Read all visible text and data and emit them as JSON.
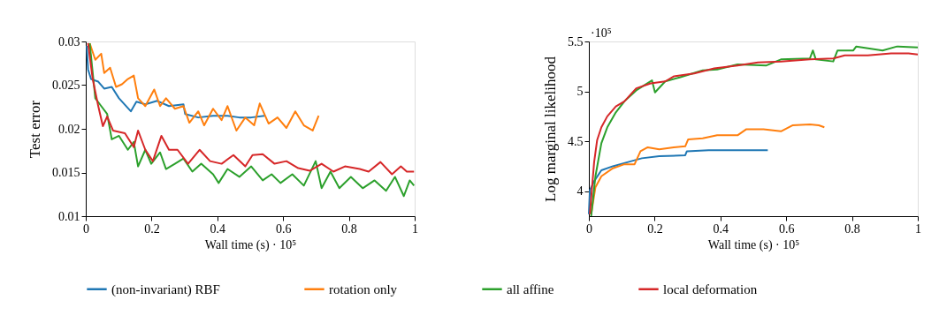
{
  "chart_data": [
    {
      "type": "line",
      "xlabel": "Wall time (s)  · 10⁵",
      "ylabel": "Test error",
      "xlim": [
        0,
        1
      ],
      "ylim": [
        0.01,
        0.03
      ],
      "xticks": [
        0,
        0.2,
        0.4,
        0.6,
        0.8,
        1
      ],
      "yticks": [
        0.01,
        0.015,
        0.02,
        0.025,
        0.03
      ],
      "grid": false,
      "legend": "bottom",
      "marker": "none",
      "line_style": "solid",
      "series": [
        {
          "name": "(non-invariant) RBF",
          "color": "#1f77b4",
          "x": [
            0.003,
            0.007,
            0.016,
            0.038,
            0.056,
            0.079,
            0.101,
            0.137,
            0.154,
            0.181,
            0.217,
            0.253,
            0.297,
            0.302,
            0.342,
            0.387,
            0.431,
            0.467,
            0.503,
            0.543
          ],
          "values": [
            0.0295,
            0.0268,
            0.0257,
            0.0254,
            0.0246,
            0.0248,
            0.0235,
            0.022,
            0.0231,
            0.0228,
            0.0232,
            0.0226,
            0.0228,
            0.0217,
            0.0213,
            0.0215,
            0.0215,
            0.0213,
            0.0213,
            0.0215
          ]
        },
        {
          "name": "rotation only",
          "color": "#ff7f0e",
          "x": [
            0.012,
            0.029,
            0.047,
            0.056,
            0.074,
            0.092,
            0.11,
            0.128,
            0.146,
            0.159,
            0.181,
            0.208,
            0.226,
            0.244,
            0.271,
            0.297,
            0.315,
            0.342,
            0.36,
            0.387,
            0.413,
            0.431,
            0.458,
            0.485,
            0.512,
            0.529,
            0.556,
            0.583,
            0.61,
            0.637,
            0.663,
            0.69,
            0.708
          ],
          "values": [
            0.0298,
            0.0279,
            0.0286,
            0.0264,
            0.027,
            0.0248,
            0.0251,
            0.0257,
            0.0261,
            0.0235,
            0.0226,
            0.0245,
            0.0226,
            0.0235,
            0.0223,
            0.0226,
            0.0207,
            0.022,
            0.0204,
            0.0223,
            0.021,
            0.0226,
            0.0198,
            0.0213,
            0.0204,
            0.0229,
            0.0206,
            0.0213,
            0.0201,
            0.022,
            0.0204,
            0.0198,
            0.0215
          ]
        },
        {
          "name": "all affine",
          "color": "#2ca02c",
          "x": [
            0.012,
            0.029,
            0.047,
            0.065,
            0.079,
            0.101,
            0.128,
            0.146,
            0.159,
            0.181,
            0.199,
            0.226,
            0.244,
            0.271,
            0.297,
            0.324,
            0.351,
            0.387,
            0.404,
            0.431,
            0.467,
            0.503,
            0.538,
            0.565,
            0.592,
            0.628,
            0.663,
            0.699,
            0.717,
            0.744,
            0.771,
            0.806,
            0.842,
            0.878,
            0.913,
            0.94,
            0.967,
            0.985,
            0.998
          ],
          "values": [
            0.0298,
            0.0235,
            0.0226,
            0.0217,
            0.0188,
            0.0192,
            0.0176,
            0.0185,
            0.0157,
            0.0176,
            0.016,
            0.0173,
            0.0154,
            0.016,
            0.0166,
            0.0151,
            0.016,
            0.0148,
            0.0138,
            0.0154,
            0.0145,
            0.0157,
            0.0141,
            0.0148,
            0.0138,
            0.0148,
            0.0135,
            0.0163,
            0.0132,
            0.0151,
            0.0132,
            0.0145,
            0.0132,
            0.0141,
            0.0129,
            0.0145,
            0.0123,
            0.0141,
            0.0135
          ]
        },
        {
          "name": "local deformation",
          "color": "#d62728",
          "x": [
            0.007,
            0.021,
            0.038,
            0.052,
            0.065,
            0.083,
            0.119,
            0.146,
            0.159,
            0.181,
            0.204,
            0.23,
            0.253,
            0.279,
            0.311,
            0.346,
            0.378,
            0.413,
            0.449,
            0.485,
            0.507,
            0.538,
            0.574,
            0.61,
            0.646,
            0.681,
            0.717,
            0.753,
            0.788,
            0.833,
            0.86,
            0.896,
            0.931,
            0.958,
            0.976,
            0.998
          ],
          "values": [
            0.0298,
            0.0257,
            0.0226,
            0.0203,
            0.0214,
            0.0198,
            0.0195,
            0.0179,
            0.0198,
            0.0176,
            0.0163,
            0.0192,
            0.0176,
            0.0176,
            0.016,
            0.0176,
            0.0163,
            0.016,
            0.017,
            0.0157,
            0.017,
            0.0171,
            0.016,
            0.0163,
            0.0155,
            0.0152,
            0.016,
            0.0151,
            0.0157,
            0.0154,
            0.0151,
            0.0162,
            0.0148,
            0.0157,
            0.0151,
            0.0151
          ]
        }
      ]
    },
    {
      "type": "line",
      "xlabel": "Wall time (s)  · 10⁵",
      "ylabel": "Log marginal likelihood",
      "annotations": [
        "·10⁵"
      ],
      "xlim": [
        0,
        1
      ],
      "ylim": [
        3.75,
        5.5
      ],
      "xticks": [
        0,
        0.2,
        0.4,
        0.6,
        0.8,
        1
      ],
      "yticks": [
        4,
        4.5,
        5,
        5.5
      ],
      "grid": false,
      "marker": "none",
      "line_style": "solid",
      "series": [
        {
          "name": "(non-invariant) RBF",
          "color": "#1f77b4",
          "x": [
            0,
            0.003,
            0.016,
            0.038,
            0.073,
            0.117,
            0.161,
            0.214,
            0.293,
            0.298,
            0.364,
            0.452,
            0.544
          ],
          "values": [
            3.77,
            4.01,
            4.1,
            4.21,
            4.25,
            4.29,
            4.33,
            4.35,
            4.36,
            4.4,
            4.41,
            4.41,
            4.41
          ]
        },
        {
          "name": "rotation only",
          "color": "#ff7f0e",
          "x": [
            0.007,
            0.02,
            0.038,
            0.073,
            0.108,
            0.139,
            0.157,
            0.179,
            0.214,
            0.258,
            0.293,
            0.302,
            0.346,
            0.39,
            0.452,
            0.478,
            0.531,
            0.584,
            0.619,
            0.672,
            0.699,
            0.716
          ],
          "values": [
            3.77,
            4.04,
            4.15,
            4.23,
            4.27,
            4.27,
            4.4,
            4.44,
            4.42,
            4.44,
            4.45,
            4.52,
            4.53,
            4.56,
            4.56,
            4.62,
            4.62,
            4.6,
            4.66,
            4.67,
            4.66,
            4.64
          ]
        },
        {
          "name": "all affine",
          "color": "#2ca02c",
          "x": [
            0.007,
            0.02,
            0.038,
            0.056,
            0.082,
            0.108,
            0.144,
            0.192,
            0.201,
            0.232,
            0.276,
            0.346,
            0.39,
            0.452,
            0.54,
            0.584,
            0.672,
            0.681,
            0.69,
            0.743,
            0.756,
            0.804,
            0.813,
            0.893,
            0.937,
            1.0
          ],
          "values": [
            3.75,
            4.15,
            4.48,
            4.64,
            4.79,
            4.9,
            5.01,
            5.11,
            4.99,
            5.1,
            5.14,
            5.21,
            5.22,
            5.27,
            5.26,
            5.32,
            5.33,
            5.41,
            5.32,
            5.3,
            5.41,
            5.41,
            5.45,
            5.41,
            5.45,
            5.44
          ]
        },
        {
          "name": "local deformation",
          "color": "#d62728",
          "x": [
            0.003,
            0.016,
            0.025,
            0.038,
            0.056,
            0.082,
            0.108,
            0.144,
            0.188,
            0.232,
            0.258,
            0.32,
            0.381,
            0.452,
            0.514,
            0.584,
            0.672,
            0.743,
            0.778,
            0.848,
            0.919,
            0.972,
            1.0
          ],
          "values": [
            3.77,
            4.29,
            4.51,
            4.64,
            4.75,
            4.85,
            4.9,
            5.03,
            5.08,
            5.1,
            5.15,
            5.18,
            5.23,
            5.26,
            5.29,
            5.3,
            5.32,
            5.33,
            5.36,
            5.36,
            5.38,
            5.38,
            5.37
          ]
        }
      ]
    }
  ]
}
